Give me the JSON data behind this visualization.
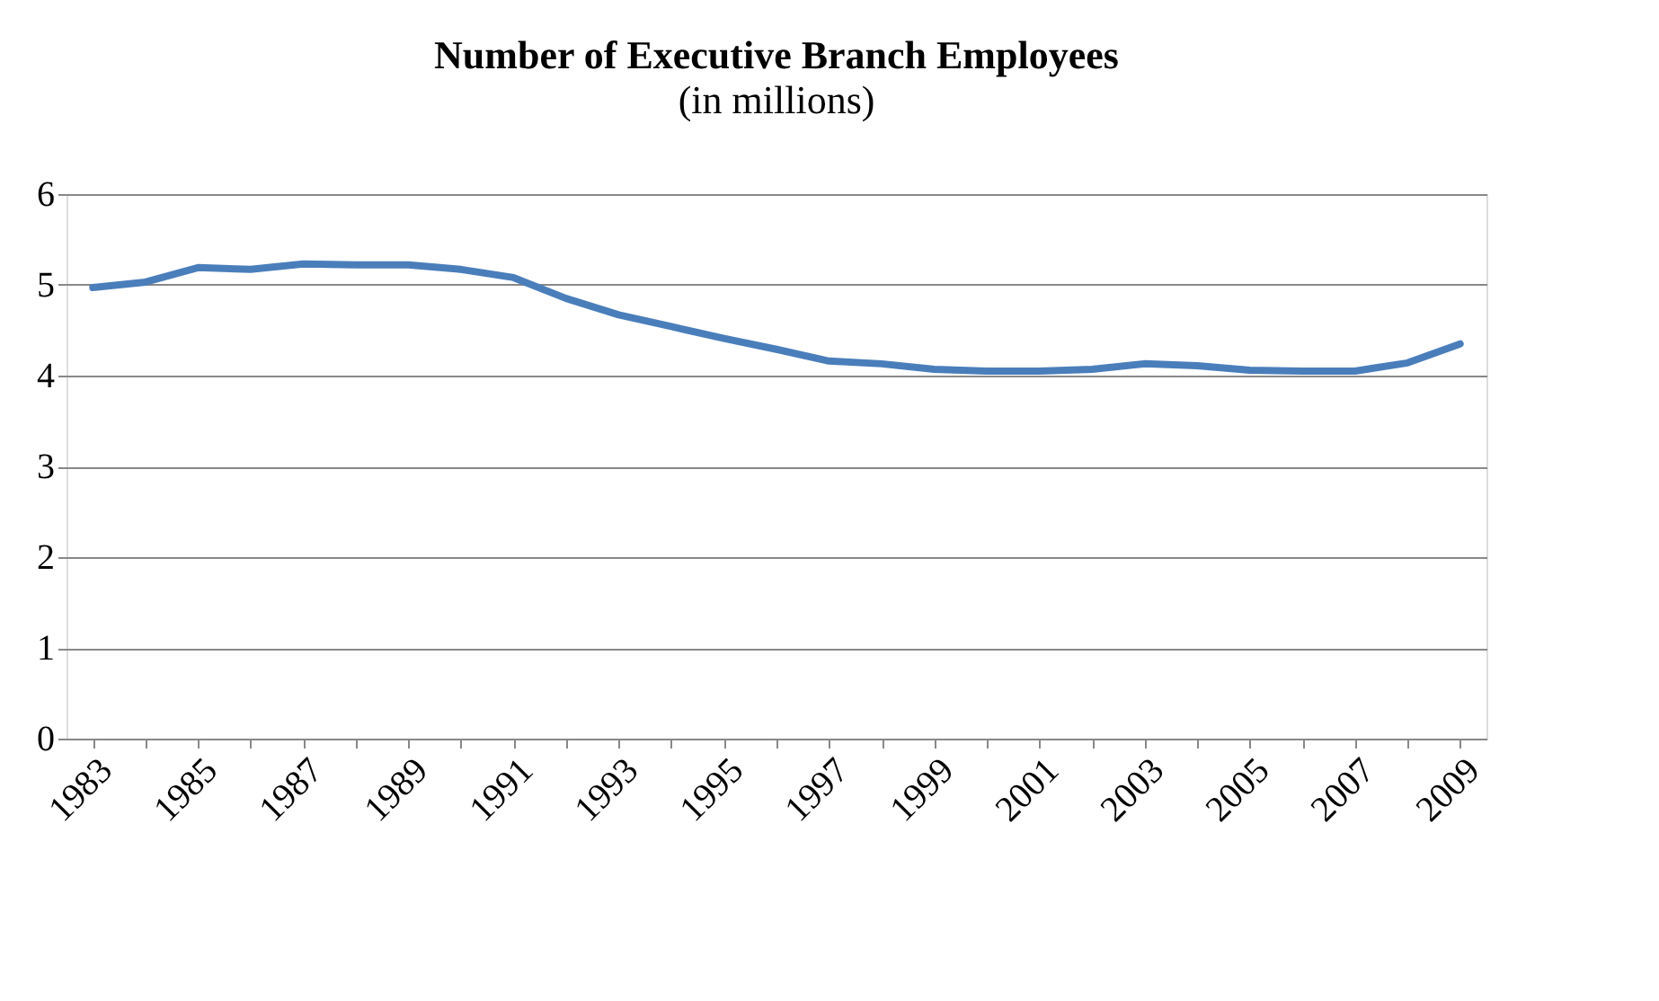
{
  "chart_data": {
    "type": "line",
    "title": "Number of Executive Branch Employees",
    "subtitle": "(in millions)",
    "categories": [
      "1983",
      null,
      "1985",
      null,
      "1987",
      null,
      "1989",
      null,
      "1991",
      null,
      "1993",
      null,
      "1995",
      null,
      "1997",
      null,
      "1999",
      null,
      "2001",
      null,
      "2003",
      null,
      "2005",
      null,
      "2007",
      null,
      "2009"
    ],
    "series": [
      {
        "color": "#4a7ebb",
        "values": [
          4.97,
          5.03,
          5.19,
          5.17,
          5.23,
          5.22,
          5.22,
          5.17,
          5.08,
          4.85,
          4.67,
          4.54,
          4.41,
          4.29,
          4.16,
          4.13,
          4.07,
          4.05,
          4.05,
          4.07,
          4.13,
          4.11,
          4.06,
          4.05,
          4.05,
          4.14,
          4.35
        ]
      }
    ],
    "ylim": [
      0,
      6
    ],
    "yticks": [
      0,
      1,
      2,
      3,
      4,
      5,
      6
    ],
    "grid": "y",
    "marker": "none",
    "line_style": "solid"
  }
}
